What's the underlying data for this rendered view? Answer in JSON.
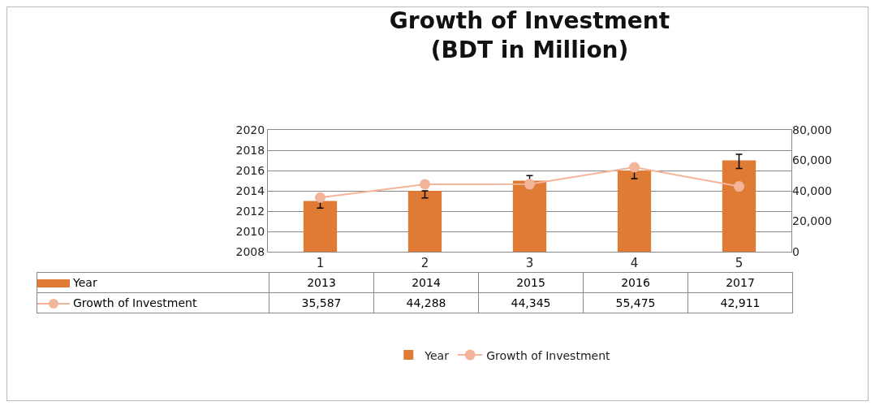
{
  "chart_data": {
    "type": "bar",
    "title": "Growth of Investment\n(BDT in Million)",
    "categories": [
      "1",
      "2",
      "3",
      "4",
      "5"
    ],
    "series": [
      {
        "name": "Year",
        "color": "#e07b35",
        "values": [
          2013,
          2014,
          2015,
          2016,
          2017
        ],
        "value_labels": [
          "2013",
          "2014",
          "2015",
          "2016",
          "2017"
        ],
        "errors": [
          [
            2012.3,
            2013
          ],
          [
            2013.3,
            2014
          ],
          [
            2015,
            2015.5
          ],
          [
            2015.2,
            2016
          ],
          [
            2016.2,
            2017.6
          ]
        ]
      },
      {
        "name": "Growth of Investment",
        "type": "line",
        "axis": "y2",
        "color": "#f4b49a",
        "values": [
          35587,
          44288,
          44345,
          55475,
          42911
        ],
        "value_labels": [
          "35,587",
          "44,288",
          "44,345",
          "55,475",
          "42,911"
        ]
      }
    ],
    "ylim": [
      2008,
      2020
    ],
    "yticks": [
      2008,
      2010,
      2012,
      2014,
      2016,
      2018,
      2020
    ],
    "y2lim": [
      0,
      80000
    ],
    "y2ticks": [
      {
        "value": 0,
        "label": "0"
      },
      {
        "value": 20000,
        "label": "20,000"
      },
      {
        "value": 40000,
        "label": "40,000"
      },
      {
        "value": 60000,
        "label": "60,000"
      },
      {
        "value": 80000,
        "label": "80,000"
      }
    ],
    "grid": "y",
    "legend": "bottom",
    "marker": "circle"
  }
}
